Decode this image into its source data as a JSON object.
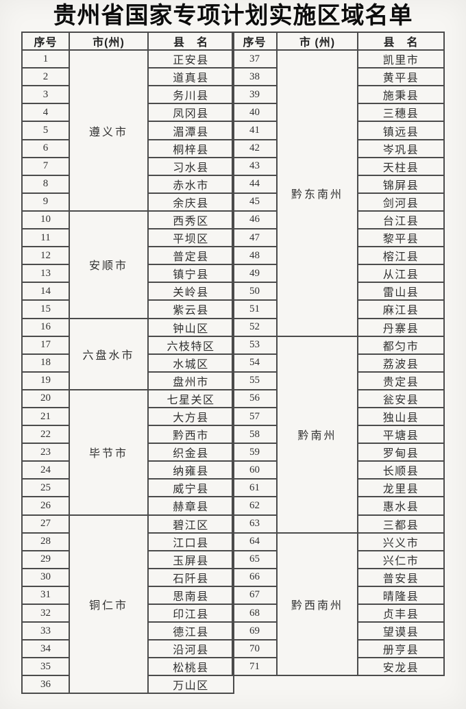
{
  "title": "贵州省国家专项计划实施区域名单",
  "colors": {
    "page_background": "#f7f6f3",
    "table_border": "#4b4b4b",
    "body_text": "#303030",
    "title_text": "#0c0c0c"
  },
  "table": {
    "left": {
      "headers": [
        "序号",
        "市(州)",
        "县　名"
      ],
      "groups": [
        {
          "city": "遵义市",
          "rows": [
            [
              "1",
              "正安县"
            ],
            [
              "2",
              "道真县"
            ],
            [
              "3",
              "务川县"
            ],
            [
              "4",
              "凤冈县"
            ],
            [
              "5",
              "湄潭县"
            ],
            [
              "6",
              "桐梓县"
            ],
            [
              "7",
              "习水县"
            ],
            [
              "8",
              "赤水市"
            ],
            [
              "9",
              "余庆县"
            ]
          ]
        },
        {
          "city": "安顺市",
          "rows": [
            [
              "10",
              "西秀区"
            ],
            [
              "11",
              "平坝区"
            ],
            [
              "12",
              "普定县"
            ],
            [
              "13",
              "镇宁县"
            ],
            [
              "14",
              "关岭县"
            ],
            [
              "15",
              "紫云县"
            ]
          ]
        },
        {
          "city": "六盘水市",
          "rows": [
            [
              "16",
              "钟山区"
            ],
            [
              "17",
              "六枝特区"
            ],
            [
              "18",
              "水城区"
            ],
            [
              "19",
              "盘州市"
            ]
          ]
        },
        {
          "city": "毕节市",
          "rows": [
            [
              "20",
              "七星关区"
            ],
            [
              "21",
              "大方县"
            ],
            [
              "22",
              "黔西市"
            ],
            [
              "23",
              "织金县"
            ],
            [
              "24",
              "纳雍县"
            ],
            [
              "25",
              "威宁县"
            ],
            [
              "26",
              "赫章县"
            ]
          ]
        },
        {
          "city": "铜仁市",
          "rows": [
            [
              "27",
              "碧江区"
            ],
            [
              "28",
              "江口县"
            ],
            [
              "29",
              "玉屏县"
            ],
            [
              "30",
              "石阡县"
            ],
            [
              "31",
              "思南县"
            ],
            [
              "32",
              "印江县"
            ],
            [
              "33",
              "德江县"
            ],
            [
              "34",
              "沿河县"
            ],
            [
              "35",
              "松桃县"
            ],
            [
              "36",
              "万山区"
            ]
          ]
        }
      ]
    },
    "right": {
      "headers": [
        "序号",
        "市 (州)",
        "县　名"
      ],
      "groups": [
        {
          "city": "黔东南州",
          "rows": [
            [
              "37",
              "凯里市"
            ],
            [
              "38",
              "黄平县"
            ],
            [
              "39",
              "施秉县"
            ],
            [
              "40",
              "三穗县"
            ],
            [
              "41",
              "镇远县"
            ],
            [
              "42",
              "岑巩县"
            ],
            [
              "43",
              "天柱县"
            ],
            [
              "44",
              "锦屏县"
            ],
            [
              "45",
              "剑河县"
            ],
            [
              "46",
              "台江县"
            ],
            [
              "47",
              "黎平县"
            ],
            [
              "48",
              "榕江县"
            ],
            [
              "49",
              "从江县"
            ],
            [
              "50",
              "雷山县"
            ],
            [
              "51",
              "麻江县"
            ],
            [
              "52",
              "丹寨县"
            ]
          ]
        },
        {
          "city": "黔南州",
          "rows": [
            [
              "53",
              "都匀市"
            ],
            [
              "54",
              "荔波县"
            ],
            [
              "55",
              "贵定县"
            ],
            [
              "56",
              "瓮安县"
            ],
            [
              "57",
              "独山县"
            ],
            [
              "58",
              "平塘县"
            ],
            [
              "59",
              "罗甸县"
            ],
            [
              "60",
              "长顺县"
            ],
            [
              "61",
              "龙里县"
            ],
            [
              "62",
              "惠水县"
            ],
            [
              "63",
              "三都县"
            ]
          ]
        },
        {
          "city": "黔西南州",
          "rows": [
            [
              "64",
              "兴义市"
            ],
            [
              "65",
              "兴仁市"
            ],
            [
              "66",
              "普安县"
            ],
            [
              "67",
              "晴隆县"
            ],
            [
              "68",
              "贞丰县"
            ],
            [
              "69",
              "望谟县"
            ],
            [
              "70",
              "册亨县"
            ],
            [
              "71",
              "安龙县"
            ]
          ]
        }
      ]
    }
  }
}
